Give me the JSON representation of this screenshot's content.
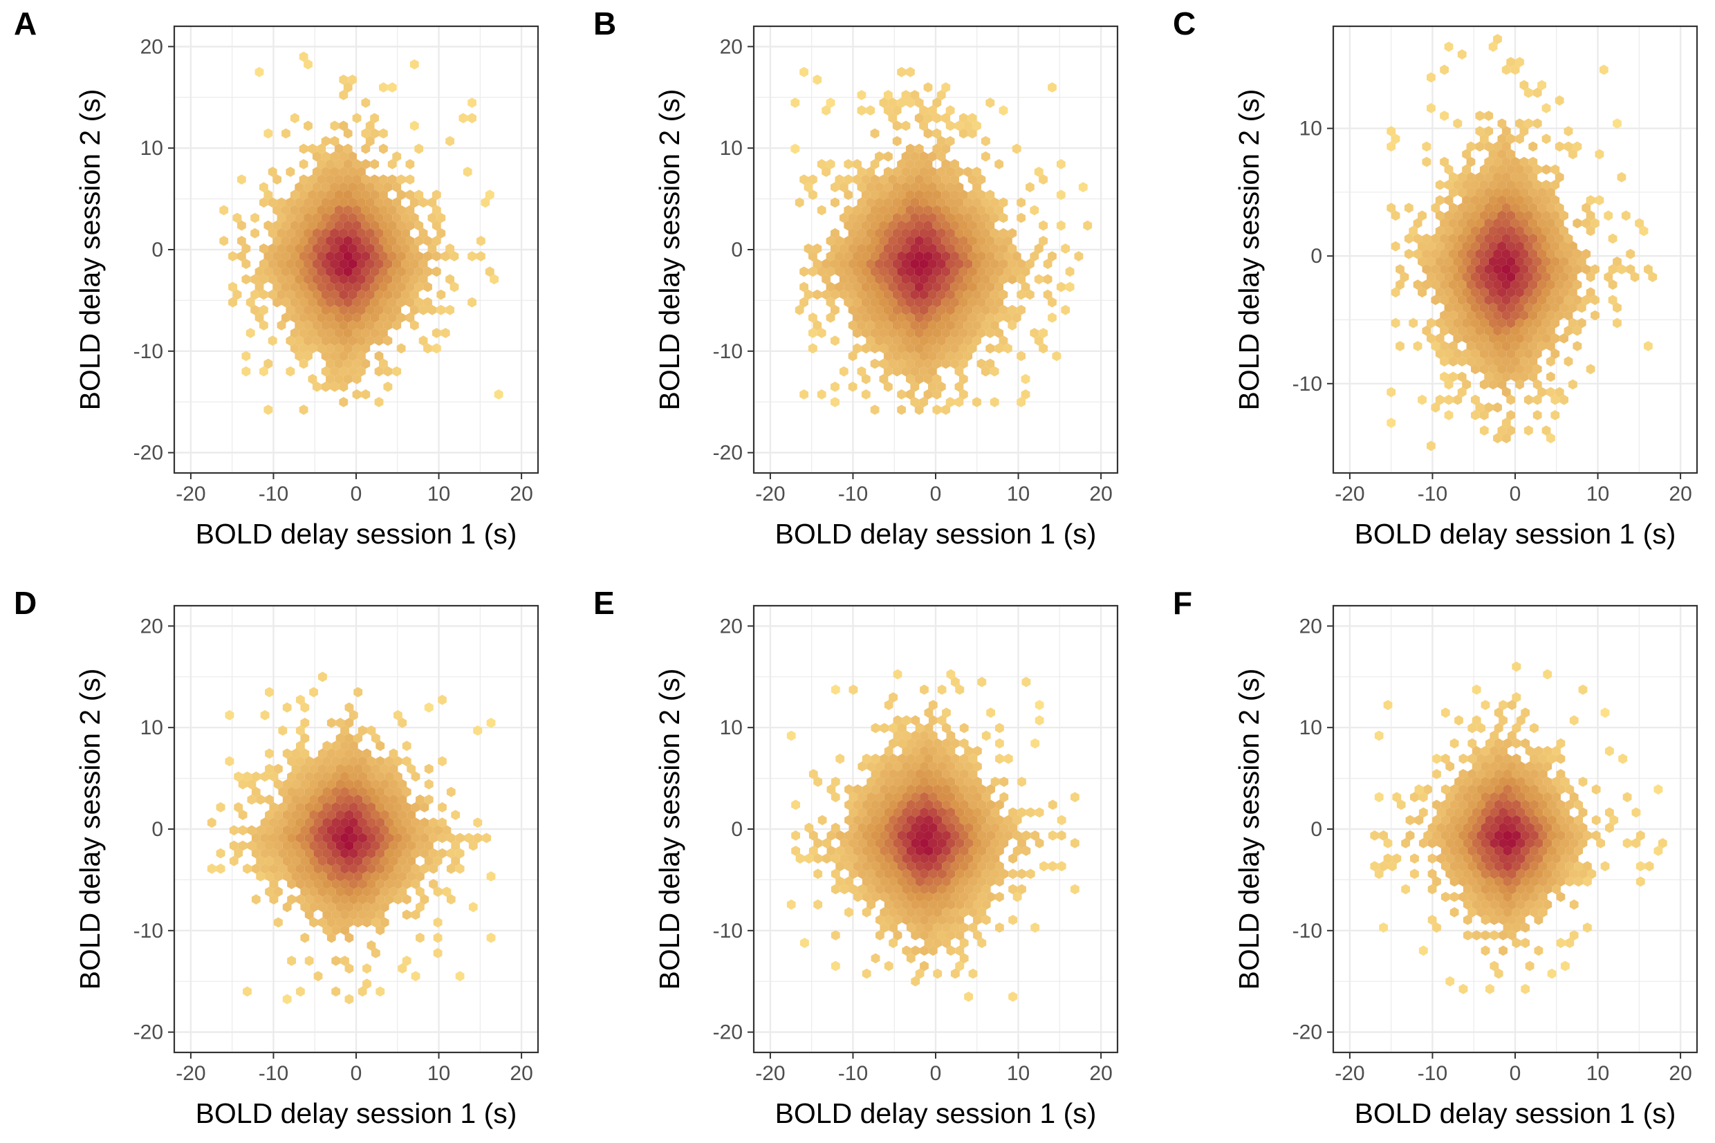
{
  "figure": {
    "colors": {
      "low": "#fde28a",
      "mid": "#d9964a",
      "high": "#a5123a",
      "grid": "#ebebeb",
      "frame": "#333333",
      "tick_text": "#4d4d4d"
    }
  },
  "chart_data": [
    {
      "panel": "A",
      "type": "scatter",
      "subtype": "hexbin-density",
      "xlabel": "BOLD delay session 1 (s)",
      "ylabel": "BOLD delay session 2 (s)",
      "xlim": [
        -22,
        22
      ],
      "ylim": [
        -22,
        22
      ],
      "xticks": [
        -20,
        -10,
        0,
        10,
        20
      ],
      "yticks": [
        -20,
        -10,
        0,
        10,
        20
      ],
      "grid": true,
      "density_center": [
        -1.2,
        -1.0
      ],
      "spread": {
        "x": 5.2,
        "y": 5.6
      },
      "range": {
        "x": [
          -16,
          20
        ],
        "y": [
          -16,
          19
        ]
      }
    },
    {
      "panel": "B",
      "type": "scatter",
      "subtype": "hexbin-density",
      "xlabel": "BOLD delay session 1 (s)",
      "ylabel": "BOLD delay session 2 (s)",
      "xlim": [
        -22,
        22
      ],
      "ylim": [
        -22,
        22
      ],
      "xticks": [
        -20,
        -10,
        0,
        10,
        20
      ],
      "yticks": [
        -20,
        -10,
        0,
        10,
        20
      ],
      "grid": true,
      "density_center": [
        -1.8,
        -1.5
      ],
      "spread": {
        "x": 6.0,
        "y": 6.0
      },
      "range": {
        "x": [
          -17,
          19
        ],
        "y": [
          -16,
          19
        ]
      }
    },
    {
      "panel": "C",
      "type": "scatter",
      "subtype": "hexbin-density",
      "xlabel": "BOLD delay session 1 (s)",
      "ylabel": "BOLD delay session 2 (s)",
      "xlim": [
        -22,
        22
      ],
      "ylim": [
        -17,
        18
      ],
      "xticks": [
        -20,
        -10,
        0,
        10,
        20
      ],
      "yticks": [
        -10,
        0,
        10
      ],
      "grid": true,
      "density_center": [
        -1.2,
        -1.0
      ],
      "spread": {
        "x": 5.0,
        "y": 5.0
      },
      "range": {
        "x": [
          -15,
          18
        ],
        "y": [
          -16,
          17
        ]
      }
    },
    {
      "panel": "D",
      "type": "scatter",
      "subtype": "hexbin-density",
      "xlabel": "BOLD delay session 1 (s)",
      "ylabel": "BOLD delay session 2 (s)",
      "xlim": [
        -22,
        22
      ],
      "ylim": [
        -22,
        22
      ],
      "xticks": [
        -20,
        -10,
        0,
        10,
        20
      ],
      "yticks": [
        -20,
        -10,
        0,
        10,
        20
      ],
      "grid": true,
      "density_center": [
        -1.0,
        -0.8
      ],
      "spread": {
        "x": 5.4,
        "y": 5.0
      },
      "range": {
        "x": [
          -18,
          18
        ],
        "y": [
          -17,
          15
        ]
      }
    },
    {
      "panel": "E",
      "type": "scatter",
      "subtype": "hexbin-density",
      "xlabel": "BOLD delay session 1 (s)",
      "ylabel": "BOLD delay session 2 (s)",
      "xlim": [
        -22,
        22
      ],
      "ylim": [
        -22,
        22
      ],
      "xticks": [
        -20,
        -10,
        0,
        10,
        20
      ],
      "yticks": [
        -20,
        -10,
        0,
        10,
        20
      ],
      "grid": true,
      "density_center": [
        -1.2,
        -1.0
      ],
      "spread": {
        "x": 5.4,
        "y": 5.2
      },
      "range": {
        "x": [
          -18,
          17
        ],
        "y": [
          -17,
          16
        ]
      }
    },
    {
      "panel": "F",
      "type": "scatter",
      "subtype": "hexbin-density",
      "xlabel": "BOLD delay session 1 (s)",
      "ylabel": "BOLD delay session 2 (s)",
      "xlim": [
        -22,
        22
      ],
      "ylim": [
        -22,
        22
      ],
      "xticks": [
        -20,
        -10,
        0,
        10,
        20
      ],
      "yticks": [
        -20,
        -10,
        0,
        10,
        20
      ],
      "grid": true,
      "density_center": [
        -1.0,
        -0.8
      ],
      "spread": {
        "x": 4.8,
        "y": 4.8
      },
      "range": {
        "x": [
          -17,
          18
        ],
        "y": [
          -16,
          16
        ]
      }
    }
  ]
}
